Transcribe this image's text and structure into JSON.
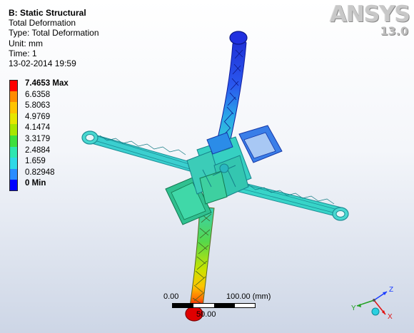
{
  "analysis": {
    "title": "B: Static Structural",
    "result_name": "Total Deformation",
    "type_line": "Type: Total Deformation",
    "unit_line": "Unit: mm",
    "time_line": "Time: 1",
    "timestamp": "13-02-2014 19:59"
  },
  "legend": {
    "entries": [
      {
        "label": "7.4653 Max",
        "color": "#ff0000",
        "bold": true
      },
      {
        "label": "6.6358",
        "color": "#ff8c00",
        "bold": false
      },
      {
        "label": "5.8063",
        "color": "#ffc400",
        "bold": false
      },
      {
        "label": "4.9769",
        "color": "#e6e600",
        "bold": false
      },
      {
        "label": "4.1474",
        "color": "#a8e600",
        "bold": false
      },
      {
        "label": "3.3179",
        "color": "#3ee03e",
        "bold": false
      },
      {
        "label": "2.4884",
        "color": "#2ee6b0",
        "bold": false
      },
      {
        "label": "1.659",
        "color": "#2ed8e6",
        "bold": false
      },
      {
        "label": "0.82948",
        "color": "#2a8cff",
        "bold": false
      },
      {
        "label": "0 Min",
        "color": "#0000ff",
        "bold": true
      }
    ]
  },
  "logo": {
    "brand": "ANSYS",
    "version": "13.0"
  },
  "scale": {
    "start": "0.00",
    "end": "100.00 (mm)",
    "mid": "50.00"
  },
  "triad": {
    "x": "X",
    "y": "Y",
    "z": "Z"
  },
  "colors": {
    "arm_cyan": "#36d6c6",
    "arm_blue": "#2b49e8",
    "arm_dark_blue": "#1a2cd0",
    "body_green": "#38cf9e",
    "red": "#ff0000"
  }
}
